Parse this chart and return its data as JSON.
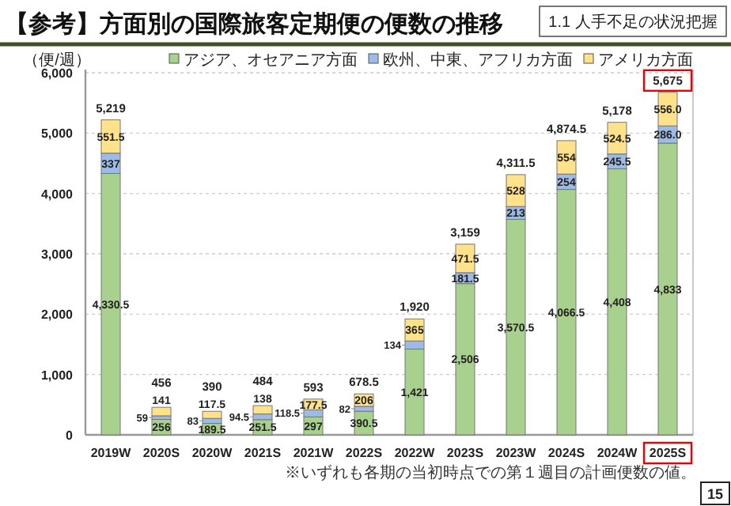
{
  "chart_data": {
    "type": "bar",
    "stacked": true,
    "title": "【参考】方面別の国際旅客定期便の便数の推移",
    "ylabel": "（便/週）",
    "categories": [
      "2019W",
      "2020S",
      "2020W",
      "2021S",
      "2021W",
      "2022S",
      "2022W",
      "2023S",
      "2023W",
      "2024S",
      "2024W",
      "2025S"
    ],
    "series": [
      {
        "name": "アジア、オセアニア方面",
        "color": "#a9d18e",
        "values": [
          4330.5,
          256,
          189.5,
          251.5,
          297,
          390.5,
          1421,
          2506,
          3570.5,
          4066.5,
          4408,
          4833
        ],
        "value_labels": [
          "4,330.5",
          "256",
          "189.5",
          "251.5",
          "297",
          "390.5",
          "1,421",
          "2,506",
          "3,570.5",
          "4,066.5",
          "4,408",
          "4,833"
        ]
      },
      {
        "name": "欧州、中東、アフリカ方面",
        "color": "#9dbbe6",
        "values": [
          337,
          59,
          83,
          94.5,
          118.5,
          82,
          134,
          181.5,
          213,
          254,
          245.5,
          286
        ],
        "value_labels": [
          "337",
          "59",
          "83",
          "94.5",
          "118.5",
          "82",
          "134",
          "181.5",
          "213",
          "254",
          "245.5",
          "286.0"
        ]
      },
      {
        "name": "アメリカ方面",
        "color": "#ffe28a",
        "values": [
          551.5,
          141,
          117.5,
          138,
          177.5,
          206,
          365,
          471.5,
          528,
          554,
          524.5,
          556
        ],
        "value_labels": [
          "551.5",
          "141",
          "117.5",
          "138",
          "177.5",
          "206",
          "365",
          "471.5",
          "528",
          "554",
          "524.5",
          "556.0"
        ]
      }
    ],
    "totals": [
      "5,219",
      "456",
      "390",
      "484",
      "593",
      "678.5",
      "1,920",
      "3,159",
      "4,311.5",
      "4,874.5",
      "5,178",
      "5,675"
    ],
    "ylim": [
      0,
      6000
    ],
    "yticks": [
      0,
      {
        "value": 1000,
        "label": "1,000"
      },
      {
        "value": 2000,
        "label": "2,000"
      },
      {
        "value": 3000,
        "label": "3,000"
      },
      {
        "value": 4000,
        "label": "4,000"
      },
      {
        "value": 5000,
        "label": "5,000"
      },
      {
        "value": 6000,
        "label": "6,000"
      }
    ],
    "grid": "y",
    "legend": "top right",
    "annotations": [
      "1.1 人手不足の状況把握",
      "※いずれも各期の当初時点での第１週目の計画便数の値。",
      "15"
    ]
  }
}
